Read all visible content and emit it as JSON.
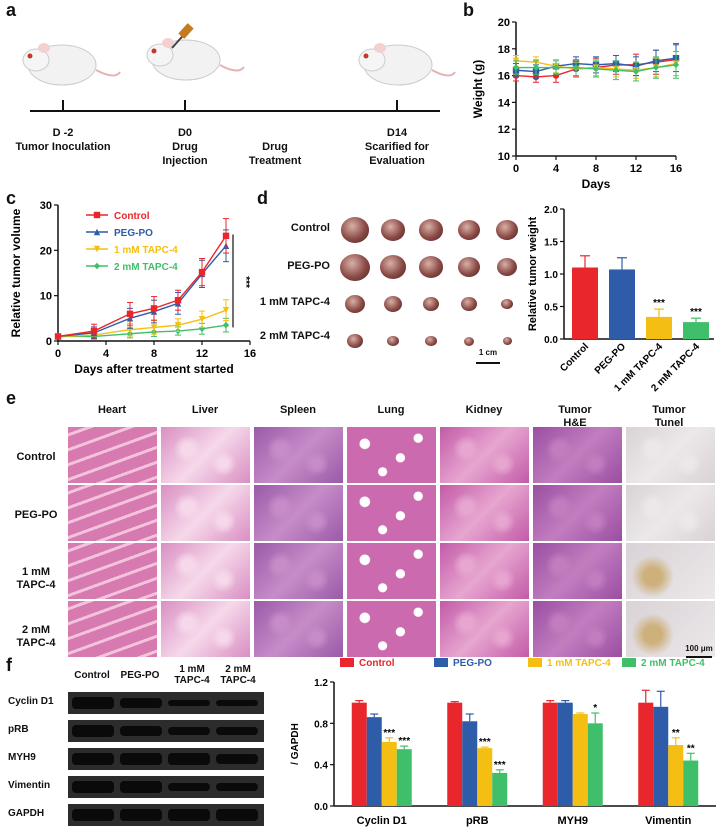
{
  "panels": {
    "a": "a",
    "b": "b",
    "c": "c",
    "d": "d",
    "e": "e",
    "f": "f"
  },
  "panel_a": {
    "timeline": [
      {
        "day": "D -2",
        "event": "Tumor Inoculation"
      },
      {
        "day": "D0",
        "event": "Drug Injection"
      },
      {
        "day": "",
        "event": "Drug Treatment"
      },
      {
        "day": "D14",
        "event": "Scarified for Evaluation"
      }
    ]
  },
  "panel_d": {
    "rows": [
      "Control",
      "PEG-PO",
      "1 mM TAPC-4",
      "2 mM TAPC-4"
    ],
    "scale": "1 cm"
  },
  "panel_e": {
    "columns": [
      "Heart",
      "Liver",
      "Spleen",
      "Lung",
      "Kidney",
      "Tumor H&E",
      "Tumor Tunel"
    ],
    "rows": [
      "Control",
      "PEG-PO",
      "1 mM TAPC-4",
      "2 mM TAPC-4"
    ],
    "scale": "100 μm"
  },
  "panel_f_blot": {
    "columns": [
      "Control",
      "PEG-PO",
      "1 mM TAPC-4",
      "2 mM TAPC-4"
    ],
    "proteins": [
      "Cyclin D1",
      "pRB",
      "MYH9",
      "Vimentin",
      "GAPDH"
    ]
  },
  "colors": {
    "control": "#e8262c",
    "pegpo": "#2f5ca8",
    "tapc1": "#f4bf12",
    "tapc2": "#3fbf6a"
  },
  "chart_data": [
    {
      "id": "b",
      "type": "line",
      "xlabel": "Days",
      "ylabel": "Weight (g)",
      "xlim": [
        0,
        16
      ],
      "ylim": [
        10,
        20
      ],
      "xticks": [
        0,
        4,
        8,
        12,
        16
      ],
      "yticks": [
        10,
        12,
        14,
        16,
        18,
        20
      ],
      "x": [
        0,
        2,
        4,
        6,
        8,
        10,
        12,
        14,
        16
      ],
      "series": [
        {
          "name": "Control",
          "values": [
            16.0,
            15.9,
            16.0,
            16.5,
            16.6,
            16.8,
            16.8,
            17.0,
            17.2
          ],
          "error": [
            0.4,
            0.4,
            0.5,
            0.6,
            0.7,
            0.7,
            0.8,
            0.9,
            1.2
          ]
        },
        {
          "name": "PEG-PO",
          "values": [
            16.4,
            16.3,
            16.7,
            16.9,
            16.8,
            16.9,
            16.7,
            17.1,
            17.3
          ],
          "error": [
            0.5,
            0.5,
            0.5,
            0.5,
            0.6,
            0.6,
            0.7,
            0.8,
            1.0
          ]
        },
        {
          "name": "1 mM TAPC-4",
          "values": [
            17.1,
            17.0,
            16.7,
            16.5,
            16.6,
            16.5,
            16.4,
            16.6,
            16.9
          ],
          "error": [
            0.4,
            0.4,
            0.5,
            0.5,
            0.6,
            0.6,
            0.6,
            0.7,
            0.9
          ]
        },
        {
          "name": "2 mM TAPC-4",
          "values": [
            16.6,
            16.6,
            16.6,
            16.6,
            16.5,
            16.4,
            16.3,
            16.6,
            16.8
          ],
          "error": [
            0.5,
            0.5,
            0.5,
            0.6,
            0.6,
            0.7,
            0.7,
            0.8,
            1.0
          ]
        }
      ]
    },
    {
      "id": "c",
      "type": "line",
      "xlabel": "Days after treatment started",
      "ylabel": "Relative tumor volume",
      "xlim": [
        0,
        16
      ],
      "ylim": [
        0,
        30
      ],
      "xticks": [
        0,
        4,
        8,
        12,
        16
      ],
      "yticks": [
        0,
        10,
        20,
        30
      ],
      "x": [
        0,
        3,
        6,
        8,
        10,
        12,
        14
      ],
      "legend": [
        "Control",
        "PEG-PO",
        "1 mM TAPC-4",
        "2 mM TAPC-4"
      ],
      "annotation": "***",
      "series": [
        {
          "name": "Control",
          "values": [
            1.0,
            2.2,
            6.0,
            7.2,
            9.0,
            15.2,
            23.2
          ],
          "error": [
            0.3,
            1.5,
            2.5,
            2.6,
            2.2,
            3.0,
            3.8
          ]
        },
        {
          "name": "PEG-PO",
          "values": [
            1.0,
            1.8,
            5.0,
            6.5,
            8.3,
            14.8,
            21.0
          ],
          "error": [
            0.3,
            1.3,
            2.2,
            2.5,
            2.4,
            3.0,
            3.5
          ]
        },
        {
          "name": "1 mM TAPC-4",
          "values": [
            1.0,
            1.3,
            2.5,
            3.0,
            3.5,
            4.8,
            6.8
          ],
          "error": [
            0.3,
            0.8,
            1.4,
            1.5,
            1.4,
            1.8,
            2.3
          ]
        },
        {
          "name": "2 mM TAPC-4",
          "values": [
            1.0,
            1.0,
            1.6,
            2.0,
            2.2,
            2.7,
            3.5
          ],
          "error": [
            0.2,
            0.6,
            0.9,
            1.0,
            0.9,
            1.2,
            1.5
          ]
        }
      ]
    },
    {
      "id": "d",
      "type": "bar",
      "ylabel": "Relative tumor weight",
      "ylim": [
        0,
        2.0
      ],
      "yticks": [
        0.0,
        0.5,
        1.0,
        1.5,
        2.0
      ],
      "categories": [
        "Control",
        "PEG-PO",
        "1 mM TAPC-4",
        "2 mM TAPC-4"
      ],
      "values": [
        1.1,
        1.07,
        0.34,
        0.26
      ],
      "error": [
        0.18,
        0.18,
        0.12,
        0.06
      ],
      "significance": [
        "",
        "",
        "***",
        "***"
      ]
    },
    {
      "id": "f",
      "type": "bar",
      "ylabel": "/ GAPDH",
      "ylim": [
        0,
        1.2
      ],
      "yticks": [
        0.0,
        0.4,
        0.8,
        1.2
      ],
      "categories": [
        "Cyclin D1",
        "pRB",
        "MYH9",
        "Vimentin"
      ],
      "series": [
        {
          "name": "Control",
          "values": [
            1.0,
            1.0,
            1.0,
            1.0
          ],
          "error": [
            0.02,
            0.01,
            0.02,
            0.12
          ],
          "sig": [
            "",
            "",
            "",
            ""
          ]
        },
        {
          "name": "PEG-PO",
          "values": [
            0.86,
            0.82,
            1.0,
            0.96
          ],
          "error": [
            0.03,
            0.07,
            0.02,
            0.15
          ],
          "sig": [
            "",
            "",
            "",
            ""
          ]
        },
        {
          "name": "1 mM TAPC-4",
          "values": [
            0.62,
            0.56,
            0.89,
            0.59
          ],
          "error": [
            0.04,
            0.01,
            0.01,
            0.07
          ],
          "sig": [
            "***",
            "***",
            "",
            "**"
          ]
        },
        {
          "name": "2 mM TAPC-4",
          "values": [
            0.55,
            0.32,
            0.8,
            0.44
          ],
          "error": [
            0.03,
            0.03,
            0.1,
            0.07
          ],
          "sig": [
            "***",
            "***",
            "*",
            "**"
          ]
        }
      ]
    }
  ]
}
